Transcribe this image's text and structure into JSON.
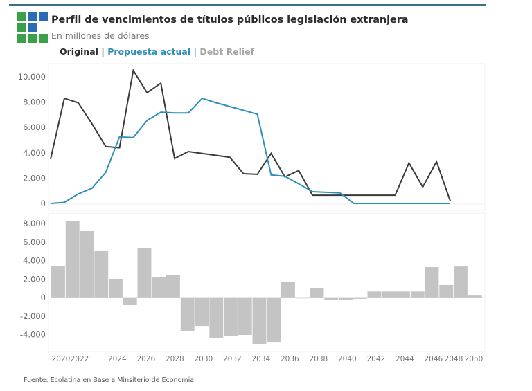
{
  "header": {
    "title": "Perfil de vencimientos de títulos públicos legislación extranjera",
    "subtitle": "En millones de dólares",
    "logo_colors": {
      "green": "#3aa04a",
      "blue": "#2a6db5"
    }
  },
  "legend": {
    "items": [
      {
        "label": "Original",
        "color": "#2b2b2b"
      },
      {
        "label": "Propuesta actual",
        "color": "#2e8fb8"
      },
      {
        "label": "Debt Relief",
        "color": "#a5a5a5"
      }
    ],
    "separator": " | "
  },
  "source": "Fuente: Ecolatina en Base a Minsiterio de Economia",
  "chart_data": [
    {
      "type": "line",
      "title": "Perfil de vencimientos",
      "xlabel": "",
      "ylabel": "En millones de dólares",
      "x": [
        2020,
        2021,
        2022,
        2023,
        2024,
        2025,
        2026,
        2027,
        2028,
        2029,
        2030,
        2031,
        2032,
        2033,
        2034,
        2035,
        2036,
        2037,
        2038,
        2039,
        2040,
        2041,
        2042,
        2043,
        2044,
        2045,
        2046,
        2047,
        2048,
        2049
      ],
      "ylim": [
        0,
        10500
      ],
      "yticks": [
        0,
        2000,
        4000,
        6000,
        8000,
        10000
      ],
      "ytick_labels": [
        "0",
        "2.000",
        "4.000",
        "6.000",
        "8.000",
        "10.000"
      ],
      "series": [
        {
          "name": "Original",
          "color": "#3a3a3a",
          "values": [
            3500,
            8300,
            7950,
            6300,
            4500,
            4400,
            10500,
            8750,
            9500,
            3550,
            4100,
            3950,
            3800,
            3650,
            2350,
            2300,
            3950,
            2100,
            2600,
            650,
            650,
            650,
            650,
            650,
            650,
            650,
            3200,
            1300,
            3300,
            180
          ]
        },
        {
          "name": "Propuesta actual",
          "color": "#2e8fb8",
          "values": [
            0,
            80,
            750,
            1200,
            2450,
            5250,
            5200,
            6550,
            7200,
            7150,
            7150,
            8300,
            7950,
            7650,
            7350,
            7050,
            2250,
            2150,
            1550,
            930,
            880,
            830,
            0,
            0,
            0,
            0,
            0,
            0,
            0,
            0
          ]
        }
      ],
      "grid": false,
      "legend": "top-left"
    },
    {
      "type": "bar",
      "title": "Debt Relief",
      "color": "#c4c4c4",
      "categories": [
        2020,
        2021,
        2022,
        2023,
        2024,
        2025,
        2026,
        2027,
        2028,
        2029,
        2030,
        2031,
        2032,
        2033,
        2034,
        2035,
        2036,
        2037,
        2038,
        2039,
        2040,
        2041,
        2042,
        2043,
        2044,
        2045,
        2046,
        2047,
        2048,
        2049
      ],
      "values": [
        3440,
        8230,
        7180,
        5090,
        2020,
        -820,
        5310,
        2240,
        2390,
        -3590,
        -3070,
        -4340,
        -4190,
        -4040,
        -5010,
        -4790,
        1650,
        -100,
        1050,
        -230,
        -230,
        -150,
        650,
        650,
        650,
        650,
        3290,
        1350,
        3360,
        220
      ],
      "ylim": [
        -5500,
        8600
      ],
      "yticks": [
        -4000,
        -2000,
        0,
        2000,
        4000,
        6000,
        8000
      ],
      "ytick_labels": [
        "-4.000",
        "-2.000",
        "0",
        "2.000",
        "4.000",
        "6.000",
        "8.000"
      ],
      "xtick_years": [
        2020,
        2022,
        2024,
        2026,
        2028,
        2030,
        2032,
        2034,
        2036,
        2038,
        2040,
        2042,
        2044,
        2046,
        2048,
        2050
      ],
      "xtick_labels": [
        "2020",
        "2022",
        "2024",
        "2026",
        "2028",
        "2030",
        "2032",
        "2034",
        "2036",
        "2038",
        "2040",
        "2042",
        "2044",
        "2046",
        "2048",
        "2050"
      ],
      "grid": false
    }
  ]
}
